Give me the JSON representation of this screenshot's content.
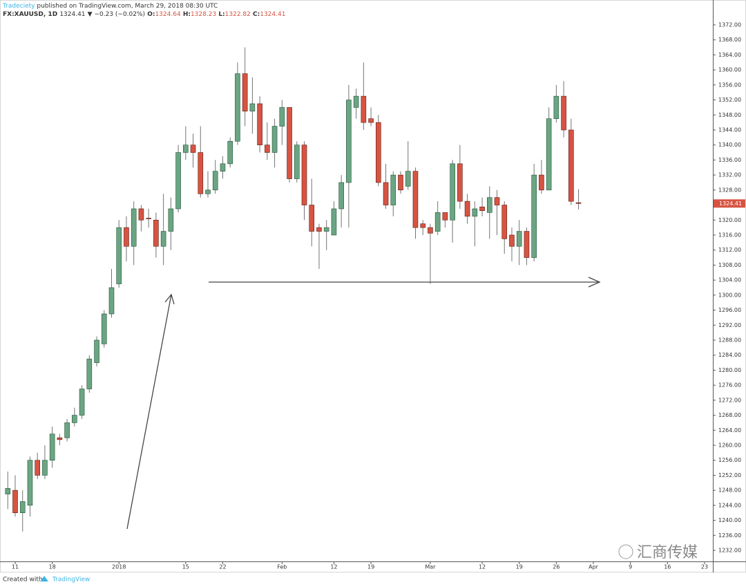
{
  "header": {
    "author": "Tradeciety",
    "published": "published on TradingView.com, March 29, 2018 08:30 UTC",
    "symbol": "FX:XAUUSD, 1D",
    "change": "▼ −0.23 (−0.02%)",
    "open_label": "O:",
    "high_label": "H:",
    "low_label": "L:",
    "close_label": "C:"
  },
  "chart_data": {
    "type": "candlestick",
    "up_color": "#6ba583",
    "down_color": "#d75442",
    "up_border": "#225437",
    "down_border": "#5b1a13",
    "wick_color": "#737375",
    "candles": {
      "open": [
        1247,
        1248,
        1242,
        1244,
        1256,
        1252,
        1256,
        1262,
        1262,
        1266,
        1268,
        1275,
        1282,
        1287,
        1295,
        1303,
        1318,
        1313,
        1323,
        1320.5,
        1320,
        1313,
        1317,
        1323,
        1338,
        1340,
        1338,
        1327,
        1328,
        1333,
        1335,
        1341,
        1359,
        1349,
        1351,
        1340,
        1338,
        1345,
        1350,
        1331,
        1340,
        1324,
        1318,
        1317,
        1316,
        1323,
        1330,
        1350,
        1353,
        1347,
        1346,
        1330,
        1324,
        1332,
        1329,
        1333,
        1319,
        1318,
        1317,
        1322,
        1320,
        1335,
        1325,
        1321,
        1323.5,
        1322,
        1326,
        1324,
        1316,
        1313,
        1317,
        1310,
        1332,
        1328,
        1347,
        1353,
        1344,
        1324.64
      ],
      "high": [
        1253,
        1252,
        1248,
        1257,
        1258,
        1260,
        1265,
        1263,
        1267,
        1270,
        1276,
        1284,
        1289,
        1296,
        1307,
        1320,
        1321,
        1325,
        1324,
        1323,
        1322,
        1327,
        1326,
        1340,
        1345,
        1343,
        1345,
        1333,
        1336,
        1337,
        1342,
        1362,
        1366,
        1358,
        1353,
        1346,
        1347,
        1352,
        1350,
        1341,
        1341,
        1331,
        1319,
        1320,
        1325,
        1332,
        1356,
        1355,
        1362,
        1350,
        1348,
        1335,
        1333,
        1333,
        1341,
        1334,
        1320,
        1319,
        1325,
        1322,
        1336,
        1340,
        1327,
        1325,
        1326,
        1329,
        1328,
        1325,
        1318,
        1320,
        1318,
        1335,
        1336,
        1350,
        1356,
        1357,
        1347,
        1328.23
      ],
      "low": [
        1243,
        1241,
        1237,
        1241,
        1251,
        1251,
        1254,
        1260,
        1261,
        1265,
        1267,
        1274,
        1281,
        1286,
        1294,
        1302,
        1309,
        1308,
        1317,
        1318,
        1310,
        1308,
        1312,
        1322,
        1336,
        1334,
        1326,
        1326,
        1327,
        1331,
        1334,
        1340,
        1345,
        1343,
        1338,
        1336,
        1334,
        1340,
        1330,
        1330,
        1320,
        1313,
        1307,
        1312,
        1316,
        1318,
        1318,
        1347,
        1344,
        1345,
        1329,
        1323,
        1321,
        1327,
        1328,
        1315,
        1316,
        1303,
        1316,
        1318,
        1314,
        1323,
        1319,
        1313,
        1321,
        1315,
        1316,
        1311,
        1309,
        1308,
        1308,
        1309,
        1327,
        1328,
        1346,
        1342,
        1324,
        1322.82
      ],
      "close": [
        1248.5,
        1242,
        1245,
        1256,
        1252,
        1256,
        1263,
        1261.5,
        1266,
        1268,
        1275,
        1283,
        1288,
        1295,
        1302,
        1318,
        1313,
        1323,
        1320,
        1320.4,
        1313,
        1317,
        1323,
        1338,
        1340,
        1338,
        1327,
        1328,
        1333,
        1335,
        1341,
        1359,
        1349,
        1351,
        1340,
        1338,
        1345,
        1350,
        1331,
        1340,
        1324,
        1317,
        1317,
        1318,
        1323,
        1330,
        1352,
        1353,
        1346,
        1346,
        1330,
        1324,
        1332,
        1328,
        1333,
        1318,
        1318,
        1316.5,
        1322,
        1320,
        1335,
        1325,
        1321,
        1323,
        1322.5,
        1326,
        1324,
        1315,
        1313,
        1317,
        1310,
        1332,
        1328,
        1347,
        1353,
        1344,
        1325,
        1324.41
      ]
    },
    "xlim": [
      -1.05,
      95.12
    ],
    "xticks": [
      {
        "value": 1,
        "label": "11"
      },
      {
        "value": 6,
        "label": "18"
      },
      {
        "value": 15,
        "label": "2018"
      },
      {
        "value": 24,
        "label": "15"
      },
      {
        "value": 29,
        "label": "22"
      },
      {
        "value": 37,
        "label": "Feb"
      },
      {
        "value": 44,
        "label": "12"
      },
      {
        "value": 49,
        "label": "19"
      },
      {
        "value": 57,
        "label": "Mar"
      },
      {
        "value": 64,
        "label": "12"
      },
      {
        "value": 69,
        "label": "19"
      },
      {
        "value": 74,
        "label": "26"
      },
      {
        "value": 79,
        "label": "Apr"
      },
      {
        "value": 84,
        "label": "9"
      },
      {
        "value": 89,
        "label": "16"
      },
      {
        "value": 94,
        "label": "23"
      }
    ],
    "ylim": [
      1229.05,
      1373.47
    ],
    "yticks": [
      {
        "value": 1232,
        "label": "1232.00"
      },
      {
        "value": 1236,
        "label": "1236.00"
      },
      {
        "value": 1240,
        "label": "1240.00"
      },
      {
        "value": 1244,
        "label": "1244.00"
      },
      {
        "value": 1248,
        "label": "1248.00"
      },
      {
        "value": 1252,
        "label": "1252.00"
      },
      {
        "value": 1256,
        "label": "1256.00"
      },
      {
        "value": 1260,
        "label": "1260.00"
      },
      {
        "value": 1264,
        "label": "1264.00"
      },
      {
        "value": 1268,
        "label": "1268.00"
      },
      {
        "value": 1272,
        "label": "1272.00"
      },
      {
        "value": 1276,
        "label": "1276.00"
      },
      {
        "value": 1280,
        "label": "1280.00"
      },
      {
        "value": 1284,
        "label": "1284.00"
      },
      {
        "value": 1288,
        "label": "1288.00"
      },
      {
        "value": 1292,
        "label": "1292.00"
      },
      {
        "value": 1296,
        "label": "1296.00"
      },
      {
        "value": 1300,
        "label": "1300.00"
      },
      {
        "value": 1304,
        "label": "1304.00"
      },
      {
        "value": 1308,
        "label": "1308.00"
      },
      {
        "value": 1312,
        "label": "1312.00"
      },
      {
        "value": 1316,
        "label": "1316.00"
      },
      {
        "value": 1320,
        "label": "1320.00"
      },
      {
        "value": 1324,
        "label": "1324.00"
      },
      {
        "value": 1328,
        "label": "1328.00"
      },
      {
        "value": 1332,
        "label": "1332.00"
      },
      {
        "value": 1336,
        "label": "1336.00"
      },
      {
        "value": 1340,
        "label": "1340.00"
      },
      {
        "value": 1344,
        "label": "1344.00"
      },
      {
        "value": 1348,
        "label": "1348.00"
      },
      {
        "value": 1352,
        "label": "1352.00"
      },
      {
        "value": 1356,
        "label": "1356.00"
      },
      {
        "value": 1360,
        "label": "1360.00"
      },
      {
        "value": 1364,
        "label": "1364.00"
      },
      {
        "value": 1368,
        "label": "1368.00"
      },
      {
        "value": 1372,
        "label": "1372.00"
      }
    ],
    "grid": false
  },
  "footer": {
    "created": "Created with",
    "brand": "TradingView"
  },
  "watermark": "汇商传媒"
}
